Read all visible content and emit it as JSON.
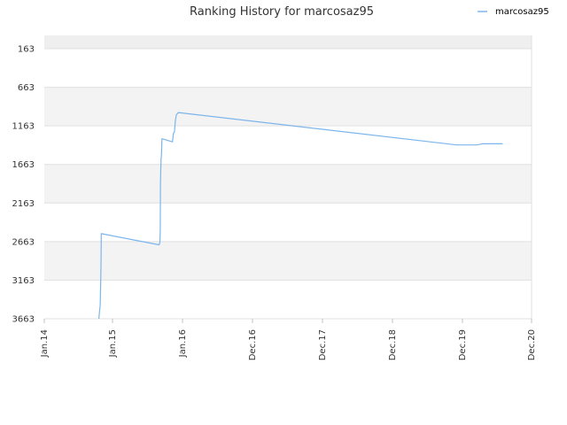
{
  "chart_data": {
    "type": "line",
    "title": "Ranking History for marcosaz95",
    "xlabel": "",
    "ylabel": "",
    "y_reversed": true,
    "ylim": [
      163,
      3663
    ],
    "y_ticks": [
      163,
      663,
      1163,
      1663,
      2163,
      2663,
      3163,
      3663
    ],
    "x_ticks": [
      "Jan.14",
      "Jan.15",
      "Jan.16",
      "Dec.16",
      "Dec.17",
      "Dec.18",
      "Dec.19",
      "Dec.20"
    ],
    "grid": true,
    "legend_position": "top-right",
    "series": [
      {
        "name": "marcosaz95",
        "color": "#7cb5ec",
        "points": [
          [
            "2014-10-20",
            3663
          ],
          [
            "2014-10-24",
            3560
          ],
          [
            "2014-10-27",
            3490
          ],
          [
            "2014-10-30",
            3180
          ],
          [
            "2014-11-01",
            2870
          ],
          [
            "2014-11-02",
            2560
          ],
          [
            "2015-09-01",
            2705
          ],
          [
            "2015-09-05",
            2670
          ],
          [
            "2015-09-07",
            2520
          ],
          [
            "2015-09-08",
            1930
          ],
          [
            "2015-09-11",
            1590
          ],
          [
            "2015-09-13",
            1555
          ],
          [
            "2015-09-16",
            1330
          ],
          [
            "2015-11-10",
            1370
          ],
          [
            "2015-11-15",
            1255
          ],
          [
            "2015-11-20",
            1245
          ],
          [
            "2015-11-25",
            1090
          ],
          [
            "2015-11-30",
            1020
          ],
          [
            "2015-12-10",
            990
          ],
          [
            "2019-11-01",
            1410
          ],
          [
            "2020-02-15",
            1410
          ],
          [
            "2020-03-15",
            1395
          ],
          [
            "2020-07-01",
            1395
          ]
        ]
      }
    ]
  }
}
